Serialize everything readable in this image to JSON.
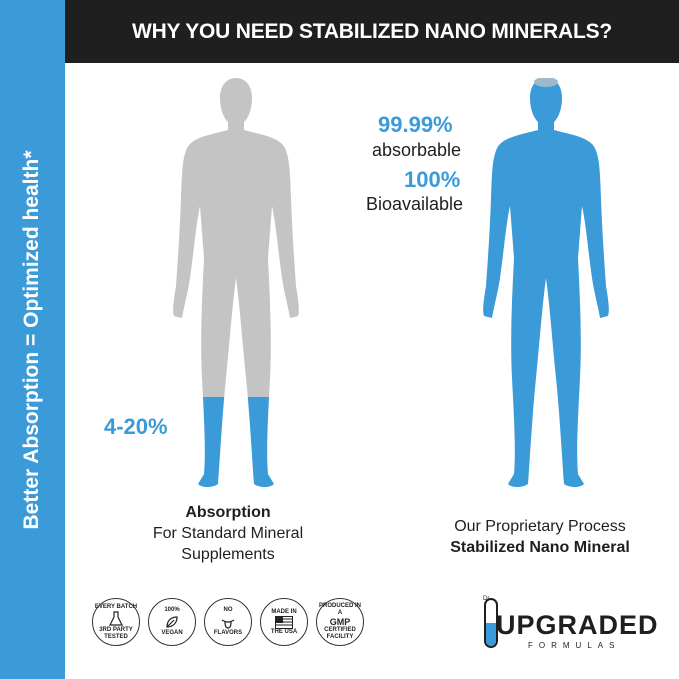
{
  "header": {
    "title": "WHY YOU NEED STABILIZED NANO MINERALS?"
  },
  "sidebar": {
    "text": "Better Absorption  =  Optimized health*"
  },
  "left": {
    "percent": "4-20%",
    "caption_bold": "Absorption",
    "caption_line1": "For Standard Mineral",
    "caption_line2": "Supplements",
    "fill_fraction": 0.2
  },
  "right": {
    "stat1_value": "99.99%",
    "stat1_label": "absorbable",
    "stat2_value": "100%",
    "stat2_label": "Bioavailable",
    "caption_line1": "Our Proprietary Process",
    "caption_bold": "Stabilized Nano Mineral"
  },
  "badges": [
    {
      "top": "EVERY BATCH",
      "bottom": "3RD PARTY TESTED",
      "icon": "flask-icon"
    },
    {
      "top": "100%",
      "bottom": "VEGAN",
      "icon": "leaf-icon"
    },
    {
      "top": "NO",
      "bottom": "FLAVORS",
      "icon": "tongue-icon"
    },
    {
      "top": "MADE IN",
      "bottom": "THE USA",
      "icon": "flag-icon"
    },
    {
      "top": "PRODUCED IN A",
      "mid": "GMP",
      "sub": "CERTIFIED",
      "bottom": "FACILITY",
      "icon": "gmp-icon"
    }
  ],
  "logo": {
    "main": "UPGRADED",
    "sub": "FORMULAS",
    "mark": "Dr."
  },
  "colors": {
    "accent": "#3b9ad8",
    "gray": "#c4c4c4",
    "dark": "#1f1f1f"
  }
}
